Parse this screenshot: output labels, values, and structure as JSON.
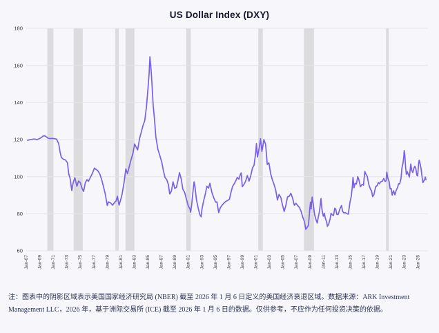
{
  "title": "US Dollar Index (DXY)",
  "footnote": "注：图表中的阴影区域表示美国国家经济研究局 (NBER) 截至 2026 年 1 月 6 日定义的美国经济衰退区域。数据来源：ARK Investment Management LLC，2026 年，基于洲际交易所 (ICE) 截至 2026 年 1 月 6 日的数据。仅供参考，不应作为任何投资决策的依据。",
  "colors": {
    "line": "#7a5fe8",
    "recession_band": "#dcdcde",
    "grid": "#e4e4ea",
    "background": "#f7f6fa",
    "title_text": "#14162e",
    "note_text": "#2b3452",
    "tick_text": "#3a3a46"
  },
  "chart_data": {
    "type": "line",
    "title": "US Dollar Index (DXY)",
    "xlabel": "",
    "ylabel": "",
    "x_range": [
      1966.8,
      2026.3
    ],
    "y_range": [
      60,
      180
    ],
    "y_ticks": [
      60,
      80,
      100,
      120,
      140,
      160,
      180
    ],
    "x_tick_years": [
      1967,
      1969,
      1971,
      1973,
      1975,
      1977,
      1979,
      1981,
      1983,
      1985,
      1987,
      1989,
      1991,
      1993,
      1995,
      1997,
      1999,
      2001,
      2003,
      2005,
      2007,
      2009,
      2011,
      2013,
      2015,
      2017,
      2019,
      2021,
      2023,
      2025
    ],
    "x_tick_labels": [
      "Jan-67",
      "Jan-69",
      "Jan-71",
      "Jan-73",
      "Jan-75",
      "Jan-77",
      "Jan-79",
      "Jan-81",
      "Jan-83",
      "Jan-85",
      "Jan-87",
      "Jan-89",
      "Jan-91",
      "Jan-93",
      "Jan-95",
      "Jan-97",
      "Jan-99",
      "Jan-01",
      "Jan-03",
      "Jan-05",
      "Jan-07",
      "Jan-09",
      "Jan-11",
      "Jan-13",
      "Jan-15",
      "Jan-17",
      "Jan-19",
      "Jan-21",
      "Jan-23",
      "Jan-25"
    ],
    "grid": "horizontal",
    "legend": "none",
    "recessions": [
      [
        1969.92,
        1970.83
      ],
      [
        1973.83,
        1975.17
      ],
      [
        1980.0,
        1980.5
      ],
      [
        1981.5,
        1982.83
      ],
      [
        1990.5,
        1991.17
      ],
      [
        2001.17,
        2001.83
      ],
      [
        2007.92,
        2009.42
      ],
      [
        2020.08,
        2020.5
      ]
    ],
    "series": [
      {
        "name": "DXY",
        "points": [
          [
            1967.0,
            119.6
          ],
          [
            1967.3,
            119.9
          ],
          [
            1967.6,
            120.1
          ],
          [
            1968.0,
            120.3
          ],
          [
            1968.4,
            120.0
          ],
          [
            1968.8,
            120.6
          ],
          [
            1969.0,
            121.0
          ],
          [
            1969.3,
            121.9
          ],
          [
            1969.5,
            122.1
          ],
          [
            1969.8,
            121.4
          ],
          [
            1970.0,
            120.8
          ],
          [
            1970.3,
            120.5
          ],
          [
            1970.6,
            120.6
          ],
          [
            1971.0,
            120.5
          ],
          [
            1971.3,
            120.2
          ],
          [
            1971.6,
            117.8
          ],
          [
            1971.8,
            113.5
          ],
          [
            1972.0,
            110.3
          ],
          [
            1972.3,
            109.4
          ],
          [
            1972.6,
            109.0
          ],
          [
            1972.9,
            107.5
          ],
          [
            1973.1,
            101.5
          ],
          [
            1973.3,
            99.0
          ],
          [
            1973.55,
            92.5
          ],
          [
            1973.75,
            96.8
          ],
          [
            1974.0,
            99.4
          ],
          [
            1974.3,
            94.8
          ],
          [
            1974.55,
            97.6
          ],
          [
            1974.8,
            96.8
          ],
          [
            1975.05,
            93.8
          ],
          [
            1975.3,
            92.0
          ],
          [
            1975.55,
            96.8
          ],
          [
            1975.8,
            98.4
          ],
          [
            1976.0,
            97.4
          ],
          [
            1976.3,
            99.6
          ],
          [
            1976.6,
            101.8
          ],
          [
            1976.9,
            104.6
          ],
          [
            1977.1,
            104.0
          ],
          [
            1977.4,
            103.2
          ],
          [
            1977.7,
            101.4
          ],
          [
            1977.95,
            98.6
          ],
          [
            1978.2,
            95.2
          ],
          [
            1978.5,
            90.8
          ],
          [
            1978.8,
            84.4
          ],
          [
            1979.0,
            86.4
          ],
          [
            1979.3,
            85.8
          ],
          [
            1979.6,
            84.6
          ],
          [
            1979.9,
            86.2
          ],
          [
            1980.1,
            86.8
          ],
          [
            1980.3,
            89.4
          ],
          [
            1980.55,
            84.6
          ],
          [
            1980.8,
            87.6
          ],
          [
            1981.0,
            90.6
          ],
          [
            1981.3,
            97.0
          ],
          [
            1981.55,
            104.2
          ],
          [
            1981.8,
            101.6
          ],
          [
            1982.0,
            104.6
          ],
          [
            1982.3,
            108.8
          ],
          [
            1982.6,
            112.4
          ],
          [
            1982.85,
            117.6
          ],
          [
            1983.1,
            115.8
          ],
          [
            1983.3,
            114.4
          ],
          [
            1983.6,
            120.8
          ],
          [
            1983.85,
            124.2
          ],
          [
            1984.1,
            127.6
          ],
          [
            1984.35,
            130.2
          ],
          [
            1984.6,
            137.4
          ],
          [
            1984.85,
            148.6
          ],
          [
            1985.0,
            155.5
          ],
          [
            1985.12,
            164.7
          ],
          [
            1985.3,
            157.0
          ],
          [
            1985.45,
            148.5
          ],
          [
            1985.6,
            138.5
          ],
          [
            1985.8,
            131.0
          ],
          [
            1986.0,
            121.5
          ],
          [
            1986.3,
            114.8
          ],
          [
            1986.6,
            111.2
          ],
          [
            1986.9,
            107.4
          ],
          [
            1987.1,
            103.4
          ],
          [
            1987.35,
            99.6
          ],
          [
            1987.6,
            98.4
          ],
          [
            1987.85,
            95.8
          ],
          [
            1988.05,
            90.6
          ],
          [
            1988.3,
            92.2
          ],
          [
            1988.55,
            97.2
          ],
          [
            1988.8,
            93.6
          ],
          [
            1989.05,
            94.2
          ],
          [
            1989.3,
            98.4
          ],
          [
            1989.5,
            102.2
          ],
          [
            1989.75,
            98.8
          ],
          [
            1990.0,
            93.2
          ],
          [
            1990.25,
            91.6
          ],
          [
            1990.5,
            88.2
          ],
          [
            1990.8,
            84.2
          ],
          [
            1991.05,
            82.6
          ],
          [
            1991.15,
            80.8
          ],
          [
            1991.3,
            84.6
          ],
          [
            1991.5,
            92.0
          ],
          [
            1991.65,
            97.2
          ],
          [
            1991.8,
            94.6
          ],
          [
            1992.0,
            87.8
          ],
          [
            1992.25,
            83.4
          ],
          [
            1992.5,
            79.6
          ],
          [
            1992.7,
            78.3
          ],
          [
            1992.85,
            82.8
          ],
          [
            1993.05,
            86.6
          ],
          [
            1993.3,
            90.2
          ],
          [
            1993.55,
            94.8
          ],
          [
            1993.8,
            93.8
          ],
          [
            1994.0,
            96.4
          ],
          [
            1994.3,
            91.4
          ],
          [
            1994.6,
            88.4
          ],
          [
            1994.85,
            86.2
          ],
          [
            1995.05,
            86.4
          ],
          [
            1995.3,
            80.6
          ],
          [
            1995.55,
            83.2
          ],
          [
            1995.8,
            84.6
          ],
          [
            1996.05,
            85.6
          ],
          [
            1996.35,
            86.6
          ],
          [
            1996.65,
            87.2
          ],
          [
            1996.9,
            87.8
          ],
          [
            1997.1,
            91.2
          ],
          [
            1997.35,
            94.6
          ],
          [
            1997.6,
            96.2
          ],
          [
            1997.85,
            97.8
          ],
          [
            1998.05,
            99.6
          ],
          [
            1998.3,
            98.6
          ],
          [
            1998.55,
            101.6
          ],
          [
            1998.65,
            102.0
          ],
          [
            1998.8,
            94.6
          ],
          [
            1999.05,
            95.8
          ],
          [
            1999.3,
            97.6
          ],
          [
            1999.55,
            100.6
          ],
          [
            1999.8,
            97.6
          ],
          [
            2000.05,
            100.4
          ],
          [
            2000.3,
            104.6
          ],
          [
            2000.55,
            106.2
          ],
          [
            2000.8,
            113.4
          ],
          [
            2000.9,
            117.8
          ],
          [
            2001.05,
            110.6
          ],
          [
            2001.3,
            115.4
          ],
          [
            2001.5,
            120.4
          ],
          [
            2001.7,
            113.6
          ],
          [
            2001.85,
            116.4
          ],
          [
            2002.0,
            120.0
          ],
          [
            2002.25,
            117.4
          ],
          [
            2002.5,
            106.6
          ],
          [
            2002.75,
            107.4
          ],
          [
            2003.0,
            101.6
          ],
          [
            2003.25,
            98.4
          ],
          [
            2003.5,
            95.8
          ],
          [
            2003.75,
            92.8
          ],
          [
            2004.0,
            87.4
          ],
          [
            2004.25,
            90.4
          ],
          [
            2004.5,
            88.8
          ],
          [
            2004.75,
            84.8
          ],
          [
            2005.0,
            81.2
          ],
          [
            2005.25,
            84.4
          ],
          [
            2005.5,
            89.0
          ],
          [
            2005.75,
            89.4
          ],
          [
            2006.0,
            91.0
          ],
          [
            2006.25,
            88.4
          ],
          [
            2006.5,
            84.6
          ],
          [
            2006.75,
            85.6
          ],
          [
            2007.0,
            84.4
          ],
          [
            2007.25,
            83.4
          ],
          [
            2007.5,
            81.4
          ],
          [
            2007.75,
            78.2
          ],
          [
            2008.0,
            75.8
          ],
          [
            2008.2,
            71.6
          ],
          [
            2008.4,
            72.6
          ],
          [
            2008.6,
            73.8
          ],
          [
            2008.75,
            80.4
          ],
          [
            2008.9,
            86.2
          ],
          [
            2009.0,
            82.6
          ],
          [
            2009.15,
            89.0
          ],
          [
            2009.3,
            85.4
          ],
          [
            2009.5,
            79.6
          ],
          [
            2009.75,
            76.4
          ],
          [
            2009.9,
            75.0
          ],
          [
            2010.05,
            78.2
          ],
          [
            2010.25,
            81.6
          ],
          [
            2010.45,
            88.2
          ],
          [
            2010.6,
            82.4
          ],
          [
            2010.8,
            78.6
          ],
          [
            2010.95,
            80.2
          ],
          [
            2011.1,
            77.6
          ],
          [
            2011.3,
            75.4
          ],
          [
            2011.4,
            73.2
          ],
          [
            2011.6,
            74.4
          ],
          [
            2011.8,
            77.2
          ],
          [
            2011.95,
            80.2
          ],
          [
            2012.1,
            79.4
          ],
          [
            2012.3,
            79.0
          ],
          [
            2012.5,
            83.0
          ],
          [
            2012.65,
            82.4
          ],
          [
            2012.8,
            79.6
          ],
          [
            2013.0,
            79.6
          ],
          [
            2013.25,
            82.6
          ],
          [
            2013.5,
            84.4
          ],
          [
            2013.65,
            81.4
          ],
          [
            2013.85,
            80.4
          ],
          [
            2014.05,
            80.6
          ],
          [
            2014.3,
            80.0
          ],
          [
            2014.5,
            79.8
          ],
          [
            2014.75,
            86.2
          ],
          [
            2014.95,
            89.6
          ],
          [
            2015.1,
            94.5
          ],
          [
            2015.2,
            99.6
          ],
          [
            2015.35,
            94.0
          ],
          [
            2015.5,
            96.4
          ],
          [
            2015.7,
            96.0
          ],
          [
            2015.9,
            100.0
          ],
          [
            2016.05,
            98.6
          ],
          [
            2016.3,
            94.6
          ],
          [
            2016.55,
            95.8
          ],
          [
            2016.75,
            95.4
          ],
          [
            2016.95,
            102.8
          ],
          [
            2017.1,
            101.4
          ],
          [
            2017.3,
            100.2
          ],
          [
            2017.55,
            95.6
          ],
          [
            2017.8,
            93.0
          ],
          [
            2017.95,
            92.4
          ],
          [
            2018.1,
            89.2
          ],
          [
            2018.3,
            90.2
          ],
          [
            2018.55,
            94.6
          ],
          [
            2018.8,
            95.2
          ],
          [
            2018.95,
            96.8
          ],
          [
            2019.1,
            96.2
          ],
          [
            2019.3,
            97.2
          ],
          [
            2019.55,
            97.6
          ],
          [
            2019.75,
            99.0
          ],
          [
            2019.95,
            97.4
          ],
          [
            2020.1,
            97.8
          ],
          [
            2020.2,
            102.4
          ],
          [
            2020.35,
            99.4
          ],
          [
            2020.55,
            97.2
          ],
          [
            2020.7,
            93.4
          ],
          [
            2020.85,
            93.6
          ],
          [
            2021.0,
            90.0
          ],
          [
            2021.2,
            92.4
          ],
          [
            2021.4,
            90.2
          ],
          [
            2021.6,
            92.6
          ],
          [
            2021.8,
            94.2
          ],
          [
            2021.95,
            96.2
          ],
          [
            2022.1,
            96.0
          ],
          [
            2022.3,
            98.8
          ],
          [
            2022.45,
            104.6
          ],
          [
            2022.6,
            107.2
          ],
          [
            2022.72,
            110.8
          ],
          [
            2022.78,
            114.1
          ],
          [
            2022.88,
            111.4
          ],
          [
            2023.0,
            104.6
          ],
          [
            2023.1,
            101.2
          ],
          [
            2023.25,
            102.6
          ],
          [
            2023.4,
            101.2
          ],
          [
            2023.55,
            99.8
          ],
          [
            2023.75,
            106.8
          ],
          [
            2023.9,
            103.4
          ],
          [
            2024.05,
            102.2
          ],
          [
            2024.2,
            104.4
          ],
          [
            2024.35,
            105.6
          ],
          [
            2024.5,
            104.4
          ],
          [
            2024.65,
            100.8
          ],
          [
            2024.78,
            100.4
          ],
          [
            2024.9,
            106.2
          ],
          [
            2025.0,
            108.9
          ],
          [
            2025.15,
            106.8
          ],
          [
            2025.3,
            103.8
          ],
          [
            2025.45,
            99.2
          ],
          [
            2025.55,
            96.8
          ],
          [
            2025.7,
            97.8
          ],
          [
            2025.8,
            98.2
          ],
          [
            2025.9,
            99.8
          ],
          [
            2026.0,
            98.4
          ]
        ]
      }
    ]
  }
}
